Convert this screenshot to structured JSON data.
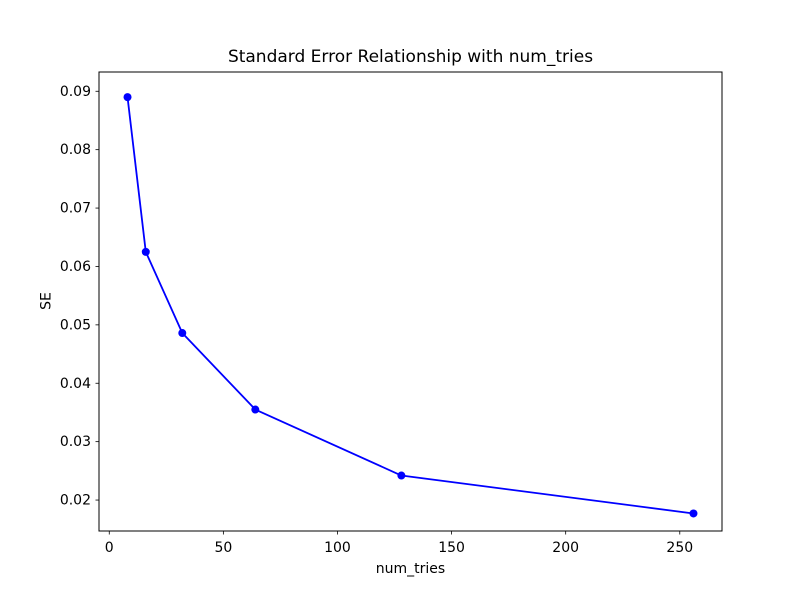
{
  "chart_data": {
    "type": "line",
    "title": "Standard Error Relationship with num_tries",
    "xlabel": "num_tries",
    "ylabel": "SE",
    "x": [
      8,
      16,
      32,
      64,
      128,
      256
    ],
    "series": [
      {
        "name": "SE",
        "values": [
          0.089,
          0.0625,
          0.0486,
          0.0355,
          0.0242,
          0.0177
        ]
      }
    ],
    "xticks": [
      0,
      50,
      100,
      150,
      200,
      250
    ],
    "yticks": [
      0.02,
      0.03,
      0.04,
      0.05,
      0.06,
      0.07,
      0.08,
      0.09
    ],
    "xlim": [
      -4.5,
      268.5
    ],
    "ylim": [
      0.0147,
      0.0933
    ],
    "grid": false,
    "line_color": "#0000ff",
    "marker": "circle",
    "background_color": "#ffffff",
    "text_color": "#000000"
  }
}
